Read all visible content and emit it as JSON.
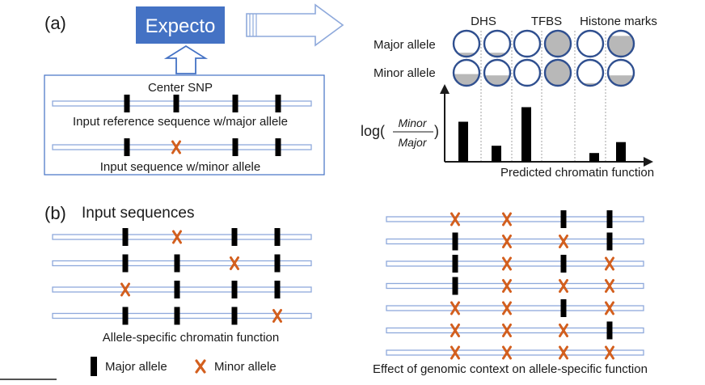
{
  "panel_a": {
    "label": "(a)",
    "model_name": "Expecto",
    "center_snp": "Center SNP",
    "ref_seq_label": "Input reference sequence w/major allele",
    "alt_seq_label": "Input sequence w/minor allele",
    "ref_seq_marks": [
      "major",
      "major",
      "major",
      "major"
    ],
    "alt_seq_marks": [
      "major",
      "minor",
      "major",
      "major"
    ],
    "circle_row_labels": [
      "Major allele",
      "Minor allele"
    ],
    "column_groups": [
      "DHS",
      "TFBS",
      "Histone marks"
    ],
    "major_fill": [
      0.15,
      0.15,
      0.0,
      0.95,
      0.0,
      0.8
    ],
    "minor_fill": [
      0.45,
      0.4,
      0.0,
      0.95,
      0.1,
      0.4
    ],
    "ylabel_prefix": "log(",
    "ylabel_numerator": "Minor",
    "ylabel_denominator": "Major",
    "ylabel_suffix": ")",
    "xlabel": "Predicted chromatin function",
    "chart_data": {
      "type": "bar",
      "xlabel": "Predicted chromatin function",
      "ylabel": "log(Minor/Major)",
      "values": [
        0.55,
        0.22,
        0.75,
        0.0,
        0.12,
        0.27
      ]
    }
  },
  "panel_b": {
    "label": "(b)",
    "title": "Input sequences",
    "left_sequences": [
      [
        "major",
        "minor",
        "major",
        "major"
      ],
      [
        "major",
        "major",
        "minor",
        "major"
      ],
      [
        "minor",
        "major",
        "major",
        "major"
      ],
      [
        "major",
        "major",
        "major",
        "minor"
      ]
    ],
    "left_caption": "Allele-specific chromatin function",
    "right_sequences": [
      [
        "minor",
        "minor",
        "major",
        "major"
      ],
      [
        "major",
        "minor",
        "minor",
        "major"
      ],
      [
        "major",
        "minor",
        "major",
        "minor"
      ],
      [
        "major",
        "minor",
        "minor",
        "minor"
      ],
      [
        "minor",
        "minor",
        "major",
        "minor"
      ],
      [
        "minor",
        "minor",
        "minor",
        "major"
      ],
      [
        "minor",
        "minor",
        "minor",
        "minor"
      ]
    ],
    "right_caption": "Effect of genomic context on allele-specific function"
  },
  "legend": {
    "major_label": "Major allele",
    "minor_label": "Minor allele"
  },
  "colors": {
    "expecto_box": "#4472c4",
    "sequence_outline": "#8ea9db",
    "minor_marker": "#d35f1e",
    "circle_outline": "#2f4f8f",
    "circle_fill": "#b8b8b8"
  }
}
